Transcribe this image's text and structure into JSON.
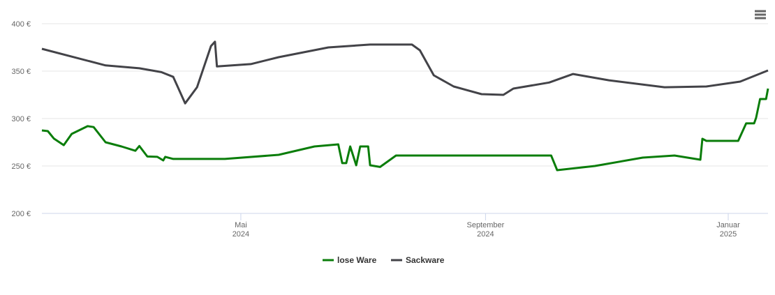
{
  "chart_data": {
    "type": "line",
    "xlim": [
      "2024-01-22",
      "2025-01-21"
    ],
    "xticks": [
      {
        "value": "2024-05-01",
        "label": "Mai 2024"
      },
      {
        "value": "2024-09-01",
        "label": "September 2024"
      },
      {
        "value": "2025-01-01",
        "label": "Januar 2025"
      }
    ],
    "ylim": [
      200,
      400
    ],
    "yticks": [
      {
        "value": 200,
        "label": "200 €"
      },
      {
        "value": 250,
        "label": "250 €"
      },
      {
        "value": 300,
        "label": "300 €"
      },
      {
        "value": 350,
        "label": "350 €"
      },
      {
        "value": 400,
        "label": "400 €"
      }
    ],
    "grid": true,
    "legend": "bottom",
    "series": [
      {
        "name": "lose Ware",
        "color": "#0a7d0a",
        "x": [
          "2024-01-22",
          "2024-01-25",
          "2024-01-28",
          "2024-02-02",
          "2024-02-06",
          "2024-02-14",
          "2024-02-17",
          "2024-02-23",
          "2024-03-02",
          "2024-03-09",
          "2024-03-11",
          "2024-03-15",
          "2024-03-20",
          "2024-03-23",
          "2024-03-24",
          "2024-03-28",
          "2024-04-23",
          "2024-05-20",
          "2024-06-07",
          "2024-06-19",
          "2024-06-21",
          "2024-06-23",
          "2024-06-25",
          "2024-06-28",
          "2024-06-30",
          "2024-07-04",
          "2024-07-05",
          "2024-07-10",
          "2024-07-18",
          "2024-10-04",
          "2024-10-07",
          "2024-10-26",
          "2024-11-19",
          "2024-12-05",
          "2024-12-18",
          "2024-12-19",
          "2024-12-21",
          "2025-01-06",
          "2025-01-10",
          "2025-01-14",
          "2025-01-15",
          "2025-01-17",
          "2025-01-20",
          "2025-01-21"
        ],
        "values": [
          287.5,
          286.8,
          279,
          272,
          283.8,
          292,
          291,
          275,
          270.6,
          266,
          271,
          260,
          259.6,
          255.9,
          259.6,
          257.4,
          257.4,
          261.8,
          270.6,
          272.8,
          253,
          253,
          270.6,
          250.7,
          270.6,
          270.6,
          250.7,
          249,
          261,
          261,
          245.6,
          250,
          258.8,
          261,
          256.6,
          278.7,
          276.5,
          276.5,
          294.9,
          294.9,
          300.7,
          320.6,
          320.6,
          331.6
        ]
      },
      {
        "name": "Sackware",
        "color": "#434348",
        "x": [
          "2024-01-22",
          "2024-02-23",
          "2024-03-11",
          "2024-03-22",
          "2024-03-28",
          "2024-04-03",
          "2024-04-09",
          "2024-04-16",
          "2024-04-18",
          "2024-04-19",
          "2024-05-06",
          "2024-05-20",
          "2024-06-14",
          "2024-07-05",
          "2024-07-26",
          "2024-07-30",
          "2024-08-06",
          "2024-08-16",
          "2024-08-30",
          "2024-09-10",
          "2024-09-15",
          "2024-10-03",
          "2024-10-15",
          "2024-11-02",
          "2024-11-30",
          "2024-12-21",
          "2025-01-07",
          "2025-01-21"
        ],
        "values": [
          373.5,
          356,
          353,
          349,
          344,
          316,
          333,
          376.5,
          381,
          355,
          357.4,
          364.7,
          375,
          378,
          378,
          372,
          345.6,
          333.8,
          325.7,
          325,
          331.6,
          338,
          347,
          340.4,
          333,
          333.8,
          339,
          350.7
        ]
      }
    ]
  }
}
